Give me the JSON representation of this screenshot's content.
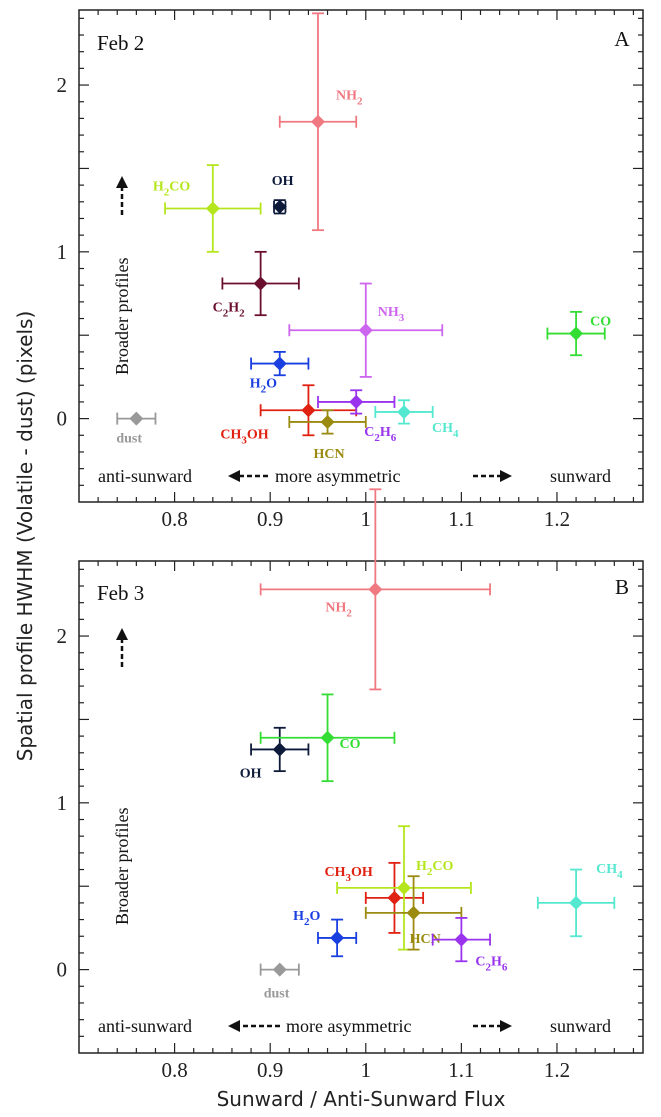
{
  "chart_data": [
    {
      "type": "scatter",
      "panel_letter": "A",
      "date_label": "Feb 2",
      "xlim": [
        0.7,
        1.29
      ],
      "ylim": [
        -0.5,
        2.45
      ],
      "xticks": [
        "0.8",
        "0.9",
        "1",
        "1.1",
        "1.2"
      ],
      "yticks": [
        "0",
        "1",
        "2"
      ],
      "xtick_values": [
        0.8,
        0.9,
        1.0,
        1.1,
        1.2
      ],
      "ytick_values": [
        0,
        1,
        2
      ],
      "annotations": {
        "anti_sunward": "anti-sunward",
        "more_asymmetric": "more asymmetric",
        "sunward": "sunward",
        "broader": "Broader profiles"
      },
      "points": [
        {
          "label_main": "NH",
          "label_sub": "2",
          "label_rest": "",
          "color": "#f07880",
          "x": 0.95,
          "y": 1.78,
          "xerr": 0.04,
          "yerr": 0.65
        },
        {
          "label_main": "H",
          "label_sub": "2",
          "label_rest": "CO",
          "color": "#b5e61d",
          "x": 0.84,
          "y": 1.26,
          "xerr": 0.05,
          "yerr": 0.26
        },
        {
          "label_main": "OH",
          "label_sub": "",
          "label_rest": "",
          "color": "#0d1a3a",
          "x": 0.91,
          "y": 1.27,
          "xerr": 0.006,
          "yerr": 0.04
        },
        {
          "label_main": "C",
          "label_sub": "2",
          "label_rest": "H2",
          "color": "#6b0f2e",
          "x": 0.89,
          "y": 0.81,
          "xerr": 0.04,
          "yerr": 0.19
        },
        {
          "label_main": "NH",
          "label_sub": "3",
          "label_rest": "",
          "color": "#cc66ee",
          "x": 1.0,
          "y": 0.53,
          "xerr": 0.08,
          "yerr": 0.28
        },
        {
          "label_main": "CO",
          "label_sub": "",
          "label_rest": "",
          "color": "#33dd33",
          "x": 1.22,
          "y": 0.51,
          "xerr": 0.03,
          "yerr": 0.13
        },
        {
          "label_main": "H",
          "label_sub": "2",
          "label_rest": "O",
          "color": "#1a3fe0",
          "x": 0.91,
          "y": 0.33,
          "xerr": 0.03,
          "yerr": 0.07
        },
        {
          "label_main": "dust",
          "label_sub": "",
          "label_rest": "",
          "color": "#999999",
          "x": 0.76,
          "y": 0.0,
          "xerr": 0.02,
          "yerr": 0.0
        },
        {
          "label_main": "CH",
          "label_sub": "3",
          "label_rest": "OH",
          "color": "#e02010",
          "x": 0.94,
          "y": 0.05,
          "xerr": 0.05,
          "yerr": 0.15
        },
        {
          "label_main": "HCN",
          "label_sub": "",
          "label_rest": "",
          "color": "#9a8a10",
          "x": 0.96,
          "y": -0.02,
          "xerr": 0.04,
          "yerr": 0.07
        },
        {
          "label_main": "C",
          "label_sub": "2",
          "label_rest": "H6",
          "color": "#9933ee",
          "x": 0.99,
          "y": 0.1,
          "xerr": 0.04,
          "yerr": 0.07
        },
        {
          "label_main": "CH",
          "label_sub": "4",
          "label_rest": "",
          "color": "#55e8d0",
          "x": 1.04,
          "y": 0.04,
          "xerr": 0.03,
          "yerr": 0.07
        }
      ]
    },
    {
      "type": "scatter",
      "panel_letter": "B",
      "date_label": "Feb 3",
      "xlim": [
        0.7,
        1.29
      ],
      "ylim": [
        -0.5,
        2.45
      ],
      "xticks": [
        "0.8",
        "0.9",
        "1",
        "1.1",
        "1.2"
      ],
      "yticks": [
        "0",
        "1",
        "2"
      ],
      "xtick_values": [
        0.8,
        0.9,
        1.0,
        1.1,
        1.2
      ],
      "ytick_values": [
        0,
        1,
        2
      ],
      "annotations": {
        "anti_sunward": "anti-sunward",
        "more_asymmetric": "more asymmetric",
        "sunward": "sunward",
        "broader": "Broader profiles"
      },
      "points": [
        {
          "label_main": "NH",
          "label_sub": "2",
          "label_rest": "",
          "color": "#f07880",
          "x": 1.01,
          "y": 2.28,
          "xerr": 0.12,
          "yerr": 0.6
        },
        {
          "label_main": "OH",
          "label_sub": "",
          "label_rest": "",
          "color": "#0d1a3a",
          "x": 0.91,
          "y": 1.32,
          "xerr": 0.03,
          "yerr": 0.13
        },
        {
          "label_main": "CO",
          "label_sub": "",
          "label_rest": "",
          "color": "#33dd33",
          "x": 0.96,
          "y": 1.39,
          "xerr": 0.07,
          "yerr": 0.26
        },
        {
          "label_main": "CH",
          "label_sub": "3",
          "label_rest": "OH",
          "color": "#e02010",
          "x": 1.03,
          "y": 0.43,
          "xerr": 0.03,
          "yerr": 0.21
        },
        {
          "label_main": "H",
          "label_sub": "2",
          "label_rest": "CO",
          "color": "#b5e61d",
          "x": 1.04,
          "y": 0.49,
          "xerr": 0.07,
          "yerr": 0.37
        },
        {
          "label_main": "HCN",
          "label_sub": "",
          "label_rest": "",
          "color": "#9a8a10",
          "x": 1.05,
          "y": 0.34,
          "xerr": 0.05,
          "yerr": 0.22
        },
        {
          "label_main": "CH",
          "label_sub": "4",
          "label_rest": "",
          "color": "#55e8d0",
          "x": 1.22,
          "y": 0.4,
          "xerr": 0.04,
          "yerr": 0.2
        },
        {
          "label_main": "H",
          "label_sub": "2",
          "label_rest": "O",
          "color": "#1a3fe0",
          "x": 0.97,
          "y": 0.19,
          "xerr": 0.02,
          "yerr": 0.11
        },
        {
          "label_main": "C",
          "label_sub": "2",
          "label_rest": "H6",
          "color": "#9933ee",
          "x": 1.1,
          "y": 0.18,
          "xerr": 0.03,
          "yerr": 0.13
        },
        {
          "label_main": "dust",
          "label_sub": "",
          "label_rest": "",
          "color": "#999999",
          "x": 0.91,
          "y": 0.0,
          "xerr": 0.02,
          "yerr": 0.0
        }
      ]
    }
  ],
  "shared": {
    "xlabel": "Sunward / Anti-Sunward Flux",
    "ylabel": "Spatial profile HWHM (Volatile - dust) (pixels)"
  }
}
